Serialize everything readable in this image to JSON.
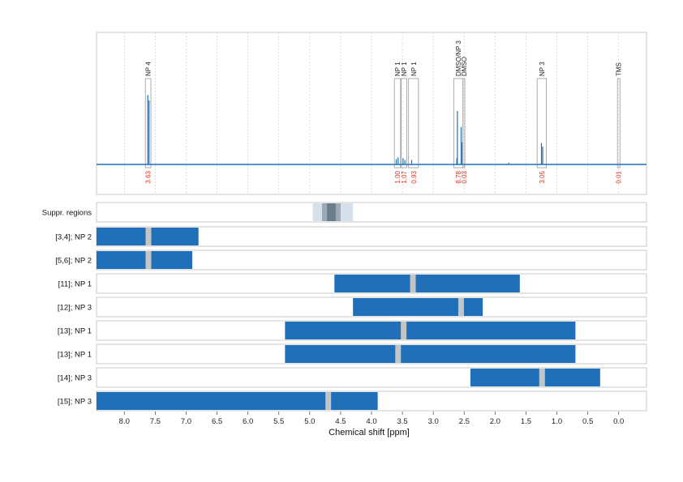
{
  "chart_data": {
    "type": "nmr_spectrum_with_range_tracks",
    "xlabel": "Chemical shift [ppm]",
    "xlim": [
      8.45,
      -0.45
    ],
    "xticks": [
      "8.0",
      "7.5",
      "7.0",
      "6.5",
      "6.0",
      "5.5",
      "5.0",
      "4.5",
      "4.0",
      "3.5",
      "3.0",
      "2.5",
      "2.0",
      "1.5",
      "1.0",
      "0.5",
      "0.0"
    ],
    "spectrum": {
      "color": "#1f70b8",
      "peaks": [
        {
          "ppm": 7.62,
          "height": 0.78
        },
        {
          "ppm": 7.6,
          "height": 0.72
        },
        {
          "ppm": 3.6,
          "height": 0.06
        },
        {
          "ppm": 3.57,
          "height": 0.08
        },
        {
          "ppm": 3.49,
          "height": 0.07
        },
        {
          "ppm": 3.46,
          "height": 0.05
        },
        {
          "ppm": 3.35,
          "height": 0.05
        },
        {
          "ppm": 2.62,
          "height": 0.07
        },
        {
          "ppm": 2.61,
          "height": 0.6
        },
        {
          "ppm": 2.55,
          "height": 0.42
        },
        {
          "ppm": 2.54,
          "height": 0.25
        },
        {
          "ppm": 1.78,
          "height": 0.02
        },
        {
          "ppm": 1.25,
          "height": 0.24
        },
        {
          "ppm": 1.23,
          "height": 0.2
        }
      ],
      "annotations": [
        {
          "label": "NP 4",
          "from": 7.66,
          "to": 7.57,
          "integral": "3.63"
        },
        {
          "label": "NP 1",
          "from": 3.63,
          "to": 3.53,
          "integral": "1.00"
        },
        {
          "label": "NP 1",
          "from": 3.52,
          "to": 3.43,
          "integral": "1.07"
        },
        {
          "label": "NP 1",
          "from": 3.4,
          "to": 3.24,
          "integral": "0.93"
        },
        {
          "label": "DMSO/NP 3",
          "from": 2.67,
          "to": 2.52,
          "integral": "8.78"
        },
        {
          "label": "DMSO",
          "from": 2.52,
          "to": 2.49,
          "integral": "0.03"
        },
        {
          "label": "NP 3",
          "from": 1.32,
          "to": 1.17,
          "integral": "3.05"
        },
        {
          "label": "TMS",
          "from": 0.02,
          "to": -0.02,
          "integral": "0.01"
        }
      ]
    },
    "suppression": {
      "label": "Suppr. regions",
      "regions": [
        {
          "from": 4.95,
          "to": 4.3,
          "shade": "#d6e0ea"
        },
        {
          "from": 4.8,
          "to": 4.5,
          "shade": "#9aa9b8"
        },
        {
          "from": 4.72,
          "to": 4.58,
          "shade": "#6d7c8c"
        }
      ]
    },
    "tracks": [
      {
        "label": "[3,4]; NP 2",
        "from": 8.45,
        "to": 6.8,
        "marker": 7.61
      },
      {
        "label": "[5,6]; NP 2",
        "from": 8.45,
        "to": 6.9,
        "marker": 7.61
      },
      {
        "label": "[11]; NP 1",
        "from": 4.6,
        "to": 1.6,
        "marker": 3.33
      },
      {
        "label": "[12]; NP 3",
        "from": 4.3,
        "to": 2.2,
        "marker": 2.55
      },
      {
        "label": "[13]; NP 1",
        "from": 5.4,
        "to": 0.7,
        "marker": 3.48
      },
      {
        "label": "[13]; NP 1",
        "from": 5.4,
        "to": 0.7,
        "marker": 3.57
      },
      {
        "label": "[14]; NP 3",
        "from": 2.4,
        "to": 0.3,
        "marker": 1.24
      },
      {
        "label": "[15]; NP 3",
        "from": 8.45,
        "to": 3.9,
        "marker": 4.7
      }
    ],
    "colors": {
      "track": "#1f70b8",
      "marker": "#c4c4c4",
      "integral": "#d7301f"
    }
  }
}
